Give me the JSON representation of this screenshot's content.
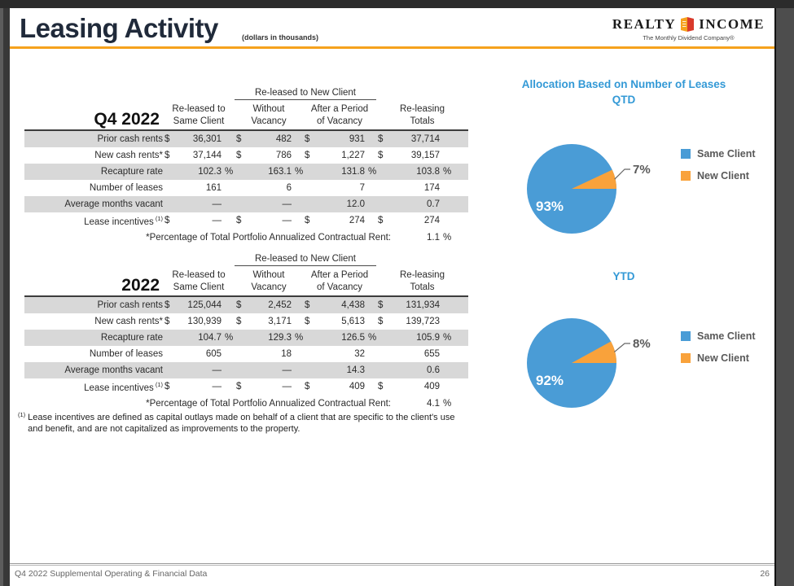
{
  "header": {
    "title": "Leasing Activity",
    "note": "(dollars in thousands)"
  },
  "logo": {
    "word_left": "REALTY",
    "word_right": "INCOME",
    "tagline": "The Monthly Dividend Company®",
    "icon": "realty-income-book-icon",
    "icon_colors": {
      "left": "#f6a21d",
      "right": "#d93a2b"
    }
  },
  "colors": {
    "accent_orange": "#f6a21d",
    "title_navy": "#202a3a",
    "chart_blue": "#4a9cd6",
    "chart_orange": "#f9a23b",
    "chart_title_blue": "#3399d6",
    "shaded_row": "#d8d8d8"
  },
  "tables": [
    {
      "period": "Q4 2022",
      "span_header": "Re-leased to New Client",
      "col_headers": [
        [
          "Re-leased to",
          "Same Client"
        ],
        [
          "Without",
          "Vacancy"
        ],
        [
          "After a Period",
          "of Vacancy"
        ],
        [
          "Re-leasing",
          "Totals"
        ]
      ],
      "rows": [
        {
          "label": "Prior cash rents",
          "shaded": true,
          "cells": [
            {
              "prefix": "$",
              "value": "36,301"
            },
            {
              "prefix": "$",
              "value": "482"
            },
            {
              "prefix": "$",
              "value": "931"
            },
            {
              "prefix": "$",
              "value": "37,714"
            }
          ]
        },
        {
          "label": "New cash rents*",
          "shaded": false,
          "cells": [
            {
              "prefix": "$",
              "value": "37,144"
            },
            {
              "prefix": "$",
              "value": "786"
            },
            {
              "prefix": "$",
              "value": "1,227"
            },
            {
              "prefix": "$",
              "value": "39,157"
            }
          ]
        },
        {
          "label": "Recapture rate",
          "shaded": true,
          "cells": [
            {
              "value": "102.3",
              "suffix": "%"
            },
            {
              "value": "163.1",
              "suffix": "%"
            },
            {
              "value": "131.8",
              "suffix": "%"
            },
            {
              "value": "103.8",
              "suffix": "%"
            }
          ]
        },
        {
          "label": "Number of leases",
          "shaded": false,
          "cells": [
            {
              "value": "161"
            },
            {
              "value": "6"
            },
            {
              "value": "7"
            },
            {
              "value": "174"
            }
          ]
        },
        {
          "label": "Average months vacant",
          "shaded": true,
          "cells": [
            {
              "value": "—"
            },
            {
              "value": "—"
            },
            {
              "value": "12.0"
            },
            {
              "value": "0.7"
            }
          ]
        },
        {
          "label": "Lease incentives",
          "sup": "(1)",
          "shaded": false,
          "cells": [
            {
              "prefix": "$",
              "value": "—"
            },
            {
              "prefix": "$",
              "value": "—"
            },
            {
              "prefix": "$",
              "value": "274"
            },
            {
              "prefix": "$",
              "value": "274"
            }
          ]
        }
      ],
      "pct_label": "*Percentage of Total Portfolio Annualized Contractual Rent:",
      "pct_value": "1.1",
      "pct_suffix": "%"
    },
    {
      "period": "2022",
      "span_header": "Re-leased to New Client",
      "col_headers": [
        [
          "Re-leased to",
          "Same Client"
        ],
        [
          "Without",
          "Vacancy"
        ],
        [
          "After a Period",
          "of Vacancy"
        ],
        [
          "Re-leasing",
          "Totals"
        ]
      ],
      "rows": [
        {
          "label": "Prior cash rents",
          "shaded": true,
          "cells": [
            {
              "prefix": "$",
              "value": "125,044"
            },
            {
              "prefix": "$",
              "value": "2,452"
            },
            {
              "prefix": "$",
              "value": "4,438"
            },
            {
              "prefix": "$",
              "value": "131,934"
            }
          ]
        },
        {
          "label": "New cash rents*",
          "shaded": false,
          "cells": [
            {
              "prefix": "$",
              "value": "130,939"
            },
            {
              "prefix": "$",
              "value": "3,171"
            },
            {
              "prefix": "$",
              "value": "5,613"
            },
            {
              "prefix": "$",
              "value": "139,723"
            }
          ]
        },
        {
          "label": "Recapture rate",
          "shaded": true,
          "cells": [
            {
              "value": "104.7",
              "suffix": "%"
            },
            {
              "value": "129.3",
              "suffix": "%"
            },
            {
              "value": "126.5",
              "suffix": "%"
            },
            {
              "value": "105.9",
              "suffix": "%"
            }
          ]
        },
        {
          "label": "Number of leases",
          "shaded": false,
          "cells": [
            {
              "value": "605"
            },
            {
              "value": "18"
            },
            {
              "value": "32"
            },
            {
              "value": "655"
            }
          ]
        },
        {
          "label": "Average months vacant",
          "shaded": true,
          "cells": [
            {
              "value": "—"
            },
            {
              "value": "—"
            },
            {
              "value": "14.3"
            },
            {
              "value": "0.6"
            }
          ]
        },
        {
          "label": "Lease incentives",
          "sup": "(1)",
          "shaded": false,
          "cells": [
            {
              "prefix": "$",
              "value": "—"
            },
            {
              "prefix": "$",
              "value": "—"
            },
            {
              "prefix": "$",
              "value": "409"
            },
            {
              "prefix": "$",
              "value": "409"
            }
          ]
        }
      ],
      "pct_label": "*Percentage of Total Portfolio Annualized Contractual Rent:",
      "pct_value": "4.1",
      "pct_suffix": "%"
    }
  ],
  "footnote": {
    "marker": "(1)",
    "text": "Lease incentives are defined as capital outlays made on behalf of a client that are specific to the client's use and benefit, and are not capitalized as improvements to the property."
  },
  "chart_data": [
    {
      "type": "pie",
      "title": "Allocation Based on Number of Leases",
      "subtitle": "QTD",
      "slices": [
        {
          "label": "Same Client",
          "value": 93,
          "color": "#4a9cd6"
        },
        {
          "label": "New Client",
          "value": 7,
          "color": "#f9a23b"
        }
      ],
      "legend_position": "right",
      "main_label": "93%",
      "callout_label": "7%"
    },
    {
      "type": "pie",
      "title": "",
      "subtitle": "YTD",
      "slices": [
        {
          "label": "Same Client",
          "value": 92,
          "color": "#4a9cd6"
        },
        {
          "label": "New Client",
          "value": 8,
          "color": "#f9a23b"
        }
      ],
      "legend_position": "right",
      "main_label": "92%",
      "callout_label": "8%"
    }
  ],
  "footer": {
    "left": "Q4 2022 Supplemental Operating & Financial Data",
    "page": "26"
  }
}
